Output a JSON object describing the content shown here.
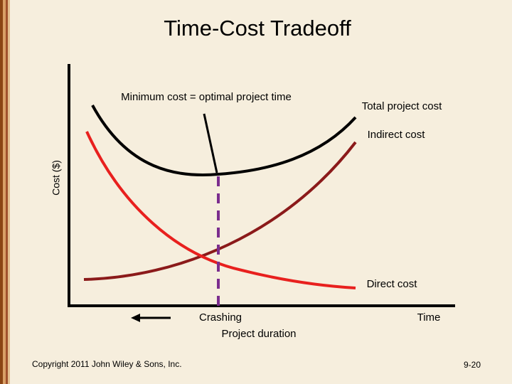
{
  "title": "Time-Cost Tradeoff",
  "diagram": {
    "y_axis_label": "Cost ($)",
    "labels": {
      "optimum": "Minimum cost = optimal project time",
      "total": "Total project cost",
      "indirect": "Indirect cost",
      "direct": "Direct cost",
      "crashing": "Crashing",
      "time": "Time",
      "duration": "Project duration"
    }
  },
  "footer": {
    "copyright": "Copyright 2011 John Wiley & Sons, Inc.",
    "page": "9-20"
  }
}
